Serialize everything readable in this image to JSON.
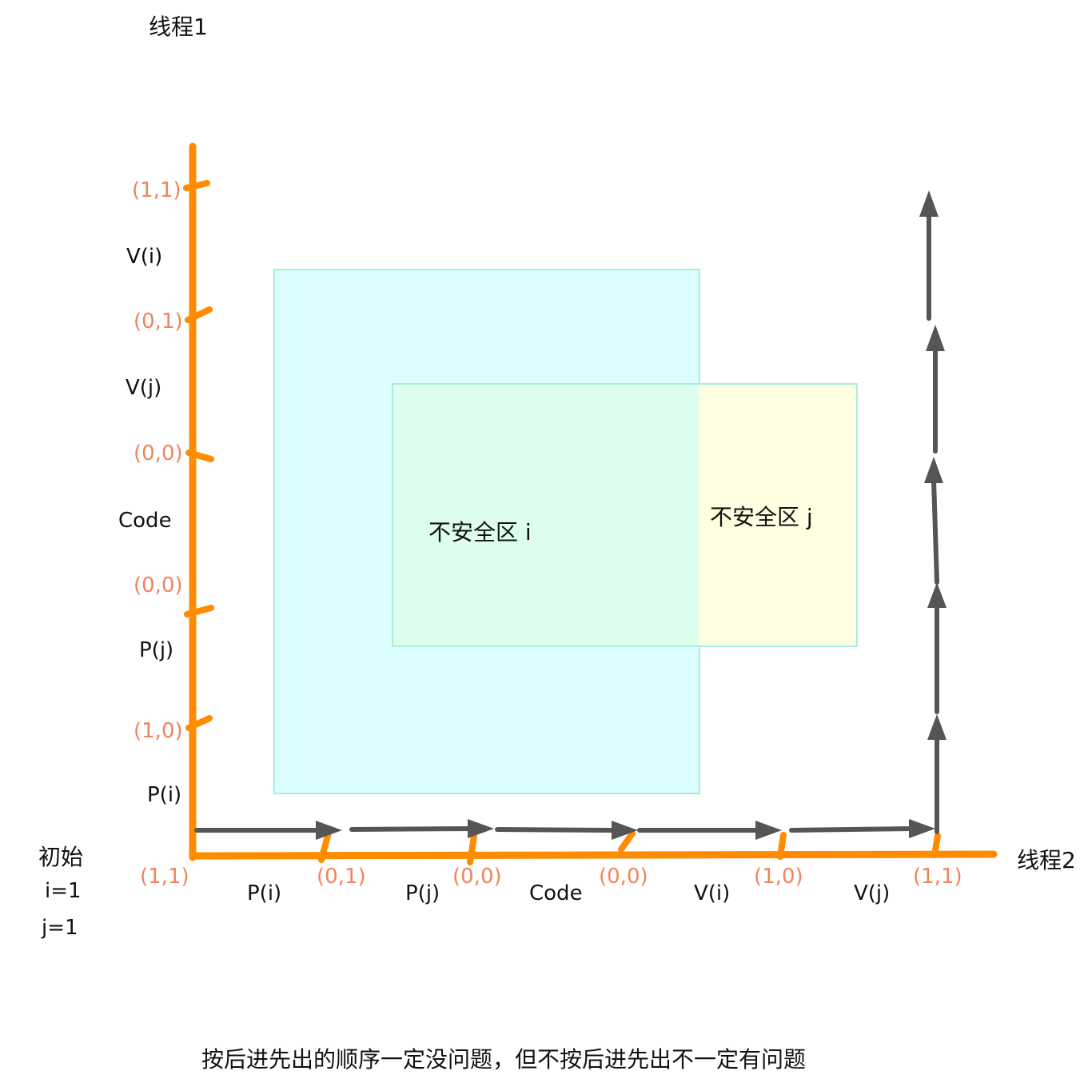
{
  "colors": {
    "axis": "#ff8c00",
    "arrow": "#555555",
    "state_label": "#f0845e",
    "unsafe_i_fill": "#dcfefe",
    "unsafe_j_fill": "#fefee0",
    "overlap_fill": "#ddfdee",
    "zone_border": "#a6eee0"
  },
  "axes": {
    "thread1": "线程1",
    "thread2": "线程2"
  },
  "initial": {
    "title": "初始",
    "i": "i=1",
    "j": "j=1"
  },
  "thread1_steps": [
    "P(i)",
    "P(j)",
    "Code",
    "V(j)",
    "V(i)"
  ],
  "thread1_states": [
    "(1,1)",
    "(1,0)",
    "(0,0)",
    "(0,0)",
    "(0,1)",
    "(1,1)"
  ],
  "thread2_steps": [
    "P(i)",
    "P(j)",
    "Code",
    "V(i)",
    "V(j)"
  ],
  "thread2_states": [
    "(1,1)",
    "(0,1)",
    "(0,0)",
    "(0,0)",
    "(1,0)",
    "(1,1)"
  ],
  "zones": {
    "unsafe_i": "不安全区 i",
    "unsafe_j": "不安全区 j"
  },
  "caption": "按后进先出的顺序一定没问题，但不按后进先出不一定有问题"
}
